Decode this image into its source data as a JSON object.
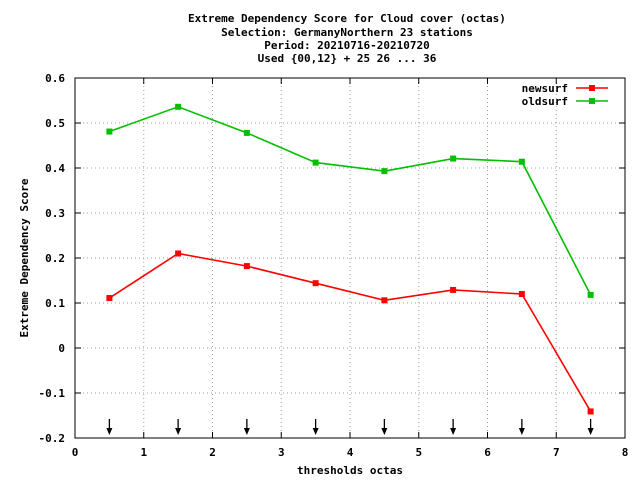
{
  "chart_data": {
    "type": "line",
    "title_lines": [
      "Extreme Dependency Score  for Cloud cover (octas)",
      "Selection: GermanyNorthern     23 stations",
      "Period: 20210716-20210720",
      "Used {00,12} + 25 26 ... 36"
    ],
    "xlabel": "thresholds octas",
    "ylabel": "Extreme Dependency Score",
    "xlim": [
      0,
      8
    ],
    "ylim": [
      -0.2,
      0.6
    ],
    "xticks": [
      0,
      1,
      2,
      3,
      4,
      5,
      6,
      7,
      8
    ],
    "xtick_labels": [
      "0",
      "1",
      "2",
      "3",
      "4",
      "5",
      "6",
      "7",
      "8"
    ],
    "yticks": [
      -0.2,
      -0.1,
      0,
      0.1,
      0.2,
      0.3,
      0.4,
      0.5,
      0.6
    ],
    "ytick_labels": [
      "-0.2",
      "-0.1",
      "0",
      "0.1",
      "0.2",
      "0.3",
      "0.4",
      "0.5",
      "0.6"
    ],
    "grid": true,
    "legend_position": "top-right",
    "x": [
      0.5,
      1.5,
      2.5,
      3.5,
      4.5,
      5.5,
      6.5,
      7.5
    ],
    "series": [
      {
        "name": "newsurf",
        "color": "#ff0000",
        "values": [
          0.111,
          0.21,
          0.182,
          0.144,
          0.106,
          0.129,
          0.12,
          -0.141
        ]
      },
      {
        "name": "oldsurf",
        "color": "#00c000",
        "values": [
          0.481,
          0.536,
          0.478,
          0.412,
          0.393,
          0.421,
          0.414,
          0.118
        ]
      }
    ],
    "threshold_arrows_at": [
      0.5,
      1.5,
      2.5,
      3.5,
      4.5,
      5.5,
      6.5,
      7.5
    ]
  }
}
